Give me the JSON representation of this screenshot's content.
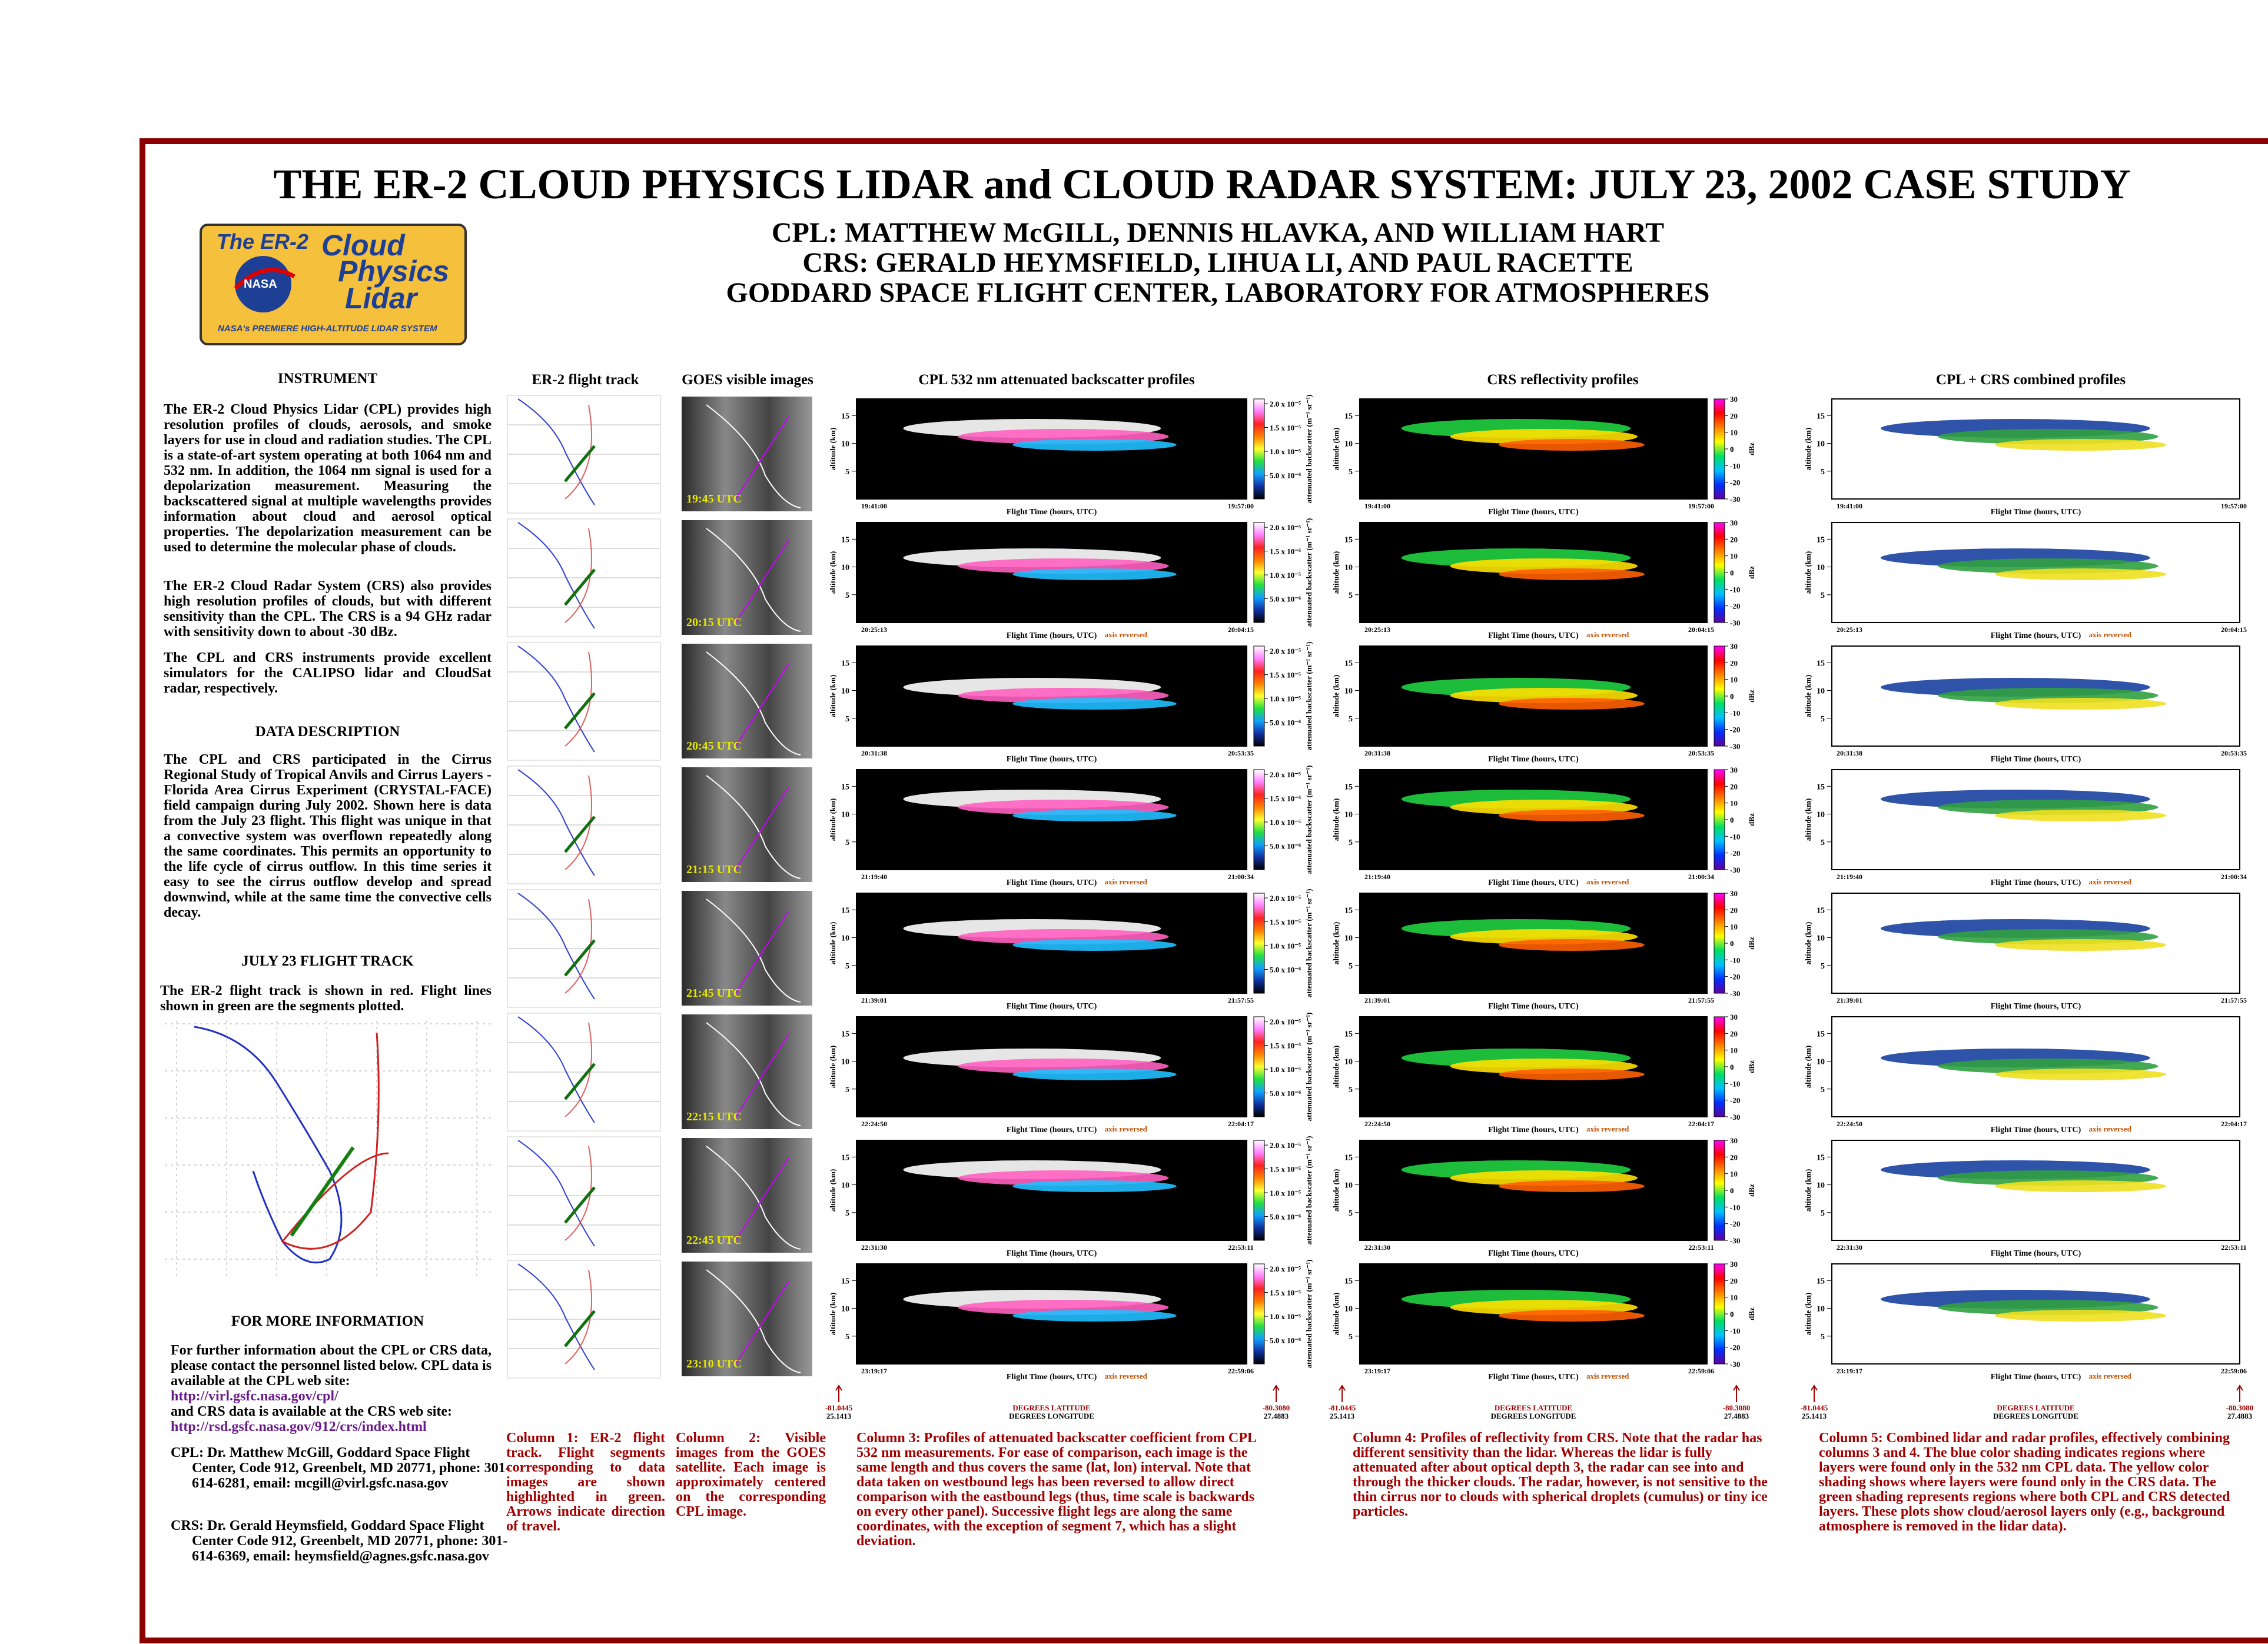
{
  "header": {
    "title": "THE ER-2 CLOUD PHYSICS LIDAR and CLOUD RADAR SYSTEM:  JULY 23, 2002 CASE STUDY",
    "authors": [
      "CPL:  MATTHEW McGILL, DENNIS HLAVKA, AND WILLIAM HART",
      "CRS:  GERALD HEYMSFIELD, LIHUA LI, AND PAUL RACETTE",
      "GODDARD SPACE FLIGHT CENTER, LABORATORY FOR ATMOSPHERES"
    ]
  },
  "logo": {
    "er2": "The ER-2",
    "cloud": "Cloud",
    "physics": "Physics",
    "lidar": "Lidar",
    "nasa": "NASA",
    "tagline": "NASA's PREMIERE HIGH-ALTITUDE LIDAR SYSTEM"
  },
  "left": {
    "instrument": {
      "heading": "INSTRUMENT",
      "paragraphs": [
        "The ER-2 Cloud Physics Lidar (CPL) provides high resolution profiles of clouds, aerosols, and smoke layers for use in cloud and radiation studies.  The CPL is a state-of-art system operating at both 1064 nm and 532 nm.  In addition, the 1064 nm signal is used for a depolarization measurement.  Measuring the backscattered signal at multiple wavelengths provides information about cloud and aerosol optical properties.  The depolarization measurement can be used to determine the molecular phase of clouds.",
        "The ER-2 Cloud Radar System (CRS) also provides high resolution profiles of clouds, but with different sensitivity than the CPL.  The CRS is a 94 GHz radar with sensitivity down to about -30 dBz.",
        "The CPL and CRS instruments provide excellent simulators for the CALIPSO lidar and CloudSat radar, respectively."
      ]
    },
    "data_description": {
      "heading": "DATA DESCRIPTION",
      "paragraph": "The CPL and CRS participated in the Cirrus Regional Study of Tropical Anvils and Cirrus Layers - Florida Area Cirrus Experiment (CRYSTAL-FACE) field campaign during July 2002.  Shown here is data from the July 23 flight.  This flight was unique in that a convective system was overflown repeatedly along the same coordinates.  This permits an opportunity to the life cycle of cirrus outflow.  In this time series it easy to see the cirrus outflow develop and spread downwind, while at the same time the convective cells decay."
    },
    "flight_track": {
      "heading": "JULY 23 FLIGHT TRACK",
      "paragraph": "The ER-2 flight track is shown in red.  Flight lines shown in green are the segments plotted."
    },
    "more_info": {
      "heading": "FOR MORE INFORMATION",
      "intro": "For further information about the CPL or CRS data, please contact the personnel listed below.  CPL data is available at the CPL web site:",
      "cpl_url": "http://virl.gsfc.nasa.gov/cpl/",
      "crs_intro": "and CRS data is available at the CRS web site:",
      "crs_url": "http://rsd.gsfc.nasa.gov/912/crs/index.html",
      "cpl_contact": "CPL:  Dr. Matthew McGill, Goddard Space Flight Center, Code 912, Greenbelt, MD  20771, phone: 301-614-6281, email:  mcgill@virl.gsfc.nasa.gov",
      "crs_contact": "CRS:  Dr. Gerald Heymsfield, Goddard Space Flight Center Code 912, Greenbelt, MD 20771, phone: 301-614-6369, email:  heymsfield@agnes.gsfc.nasa.gov"
    }
  },
  "column_headers": [
    "ER-2 flight track",
    "GOES visible images",
    "CPL 532 nm attenuated backscatter profiles",
    "CRS reflectivity profiles",
    "CPL + CRS combined profiles"
  ],
  "panels": {
    "y_axis_label": "altitude (km)",
    "x_axis_label": "Flight Time (hours, UTC)",
    "reversed_label": "axis reversed",
    "ylim": [
      0,
      18
    ],
    "yticks": [
      5,
      10,
      15
    ],
    "cpl_colorbar_label": "attenuated backscatter (m⁻¹ sr⁻¹)",
    "cpl_clim": [
      0,
      2.1e-05
    ],
    "cpl_colorbar_ticks": [
      {
        "value": 5e-06,
        "label": "5.0 x 10⁻⁶"
      },
      {
        "value": 1e-05,
        "label": "1.0 x 10⁻⁵"
      },
      {
        "value": 1.5e-05,
        "label": "1.5 x 10⁻⁵"
      },
      {
        "value": 2e-05,
        "label": "2.0 x 10⁻⁵"
      }
    ],
    "crs_colorbar_label": "dBz",
    "crs_clim": [
      -30,
      30
    ],
    "crs_colorbar_ticks": [
      -30,
      -20,
      -10,
      0,
      10,
      20,
      30
    ]
  },
  "rows": [
    {
      "goes_time": "19:45 UTC",
      "start": "19:41:00",
      "end": "19:57:00",
      "reversed": false
    },
    {
      "goes_time": "20:15 UTC",
      "start": "20:25:13",
      "end": "20:04:15",
      "reversed": true
    },
    {
      "goes_time": "20:45 UTC",
      "start": "20:31:38",
      "end": "20:53:35",
      "reversed": false
    },
    {
      "goes_time": "21:15 UTC",
      "start": "21:19:40",
      "end": "21:00:34",
      "reversed": true
    },
    {
      "goes_time": "21:45 UTC",
      "start": "21:39:01",
      "end": "21:57:55",
      "reversed": false
    },
    {
      "goes_time": "22:15 UTC",
      "start": "22:24:50",
      "end": "22:04:17",
      "reversed": true
    },
    {
      "goes_time": "22:45 UTC",
      "start": "22:31:30",
      "end": "22:53:11",
      "reversed": false
    },
    {
      "goes_time": "23:10 UTC",
      "start": "23:19:17",
      "end": "22:59:06",
      "reversed": true
    }
  ],
  "coordinates": {
    "left_top": "-81.0445",
    "left_bottom": "25.1413",
    "lat_label": "DEGREES LATITUDE",
    "lon_label": "DEGREES LONGITUDE",
    "right_top": "-80.3080",
    "right_bottom": "27.4883"
  },
  "captions": [
    "Column 1:  ER-2 flight track.  Flight segments corresponding to data images are shown highlighted in green.  Arrows indicate direction of travel.",
    "Column 2:  Visible images from the GOES satellite.  Each image is approximately centered on the corresponding CPL image.",
    "Column 3:  Profiles of attenuated backscatter coefficient from CPL 532 nm measurements.  For ease of comparison, each image is the same length and thus covers the same (lat, lon) interval.  Note that data taken on westbound legs has been reversed to allow direct comparison with the eastbound legs (thus, time scale is backwards on every other panel).  Successive flight legs are along the same coordinates, with the exception of segment 7, which has a slight deviation.",
    "Column 4:  Profiles of reflectivity from CRS.  Note that the radar has different sensitivity than the lidar.  Whereas the lidar is fully attenuated after about optical depth 3, the radar can see into and through the thicker clouds.  The radar, however, is not sensitive to the thin cirrus nor to clouds with spherical droplets (cumulus) or tiny ice particles.",
    "Column 5:  Combined lidar and radar profiles, effectively combining columns 3 and 4.  The blue color shading indicates regions where layers were found only in the 532 nm CPL data.  The yellow color shading shows where layers were found only in the CRS data.  The green shading represents regions where both CPL and CRS detected layers.  These plots show cloud/aerosol layers only (e.g., background atmosphere is removed in the lidar data)."
  ]
}
